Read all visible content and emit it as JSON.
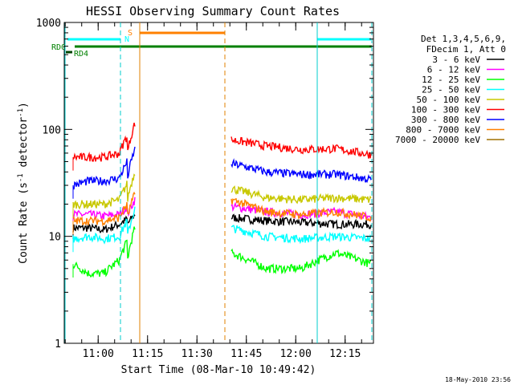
{
  "chart_data": {
    "type": "line",
    "title": "HESSI Observing Summary Count Rates",
    "xlabel": "Start Time (08-Mar-10 10:49:42)",
    "ylabel_main": "Count Rate (s",
    "ylabel_sup1": "-1",
    "ylabel_mid": " detector",
    "ylabel_sup2": "-1",
    "ylabel_end": ")",
    "yscale": "log",
    "ylim": [
      1,
      1000
    ],
    "x_ticks": [
      "11:00",
      "11:15",
      "11:30",
      "11:45",
      "12:00",
      "12:15"
    ],
    "y_ticks": [
      "1",
      "10",
      "100",
      "1000"
    ],
    "timestamp": "18-May-2010 23:56",
    "legend_header": [
      "Det 1,3,4,5,6,9,",
      "FDecim 1, Att 0"
    ],
    "flag_labels": {
      "rd0": "RD0",
      "rd4": "RD4",
      "s": "S",
      "n": "N"
    },
    "series": [
      {
        "name": "3 - 6 keV",
        "color": "#000000",
        "before": [
          12,
          12,
          11.5,
          13,
          16
        ],
        "after": [
          15,
          14,
          13.5,
          13,
          13
        ]
      },
      {
        "name": "6 - 12 keV",
        "color": "#ff00ff",
        "before": [
          16,
          16,
          15.5,
          16,
          22
        ],
        "after": [
          19,
          17,
          16,
          17,
          15
        ]
      },
      {
        "name": "12 - 25 keV",
        "color": "#00ff00",
        "before": [
          5.5,
          4.5,
          4.5,
          6,
          12
        ],
        "after": [
          7,
          5,
          5,
          7,
          5.5
        ]
      },
      {
        "name": "25 - 50 keV",
        "color": "#00ffff",
        "before": [
          9.5,
          10,
          9.5,
          10,
          18
        ],
        "after": [
          12,
          10,
          9.5,
          10,
          9.5
        ]
      },
      {
        "name": "50 - 100 keV",
        "color": "#c8c800",
        "before": [
          20,
          20,
          20,
          22,
          40
        ],
        "after": [
          28,
          23,
          22,
          23,
          22
        ]
      },
      {
        "name": "100 - 300 keV",
        "color": "#ff0000",
        "before": [
          55,
          55,
          55,
          60,
          115
        ],
        "after": [
          80,
          70,
          65,
          66,
          58
        ]
      },
      {
        "name": "300 - 800 keV",
        "color": "#0000ff",
        "before": [
          30,
          33,
          33,
          35,
          65
        ],
        "after": [
          48,
          40,
          38,
          38,
          34
        ]
      },
      {
        "name": "800 - 7000 keV",
        "color": "#ff8000",
        "before": [
          14,
          14,
          14,
          15,
          25
        ],
        "after": [
          22,
          17,
          16,
          17,
          15
        ]
      },
      {
        "name": "7000 - 20000 keV",
        "color": "#a07000",
        "before": [],
        "after": []
      }
    ]
  }
}
